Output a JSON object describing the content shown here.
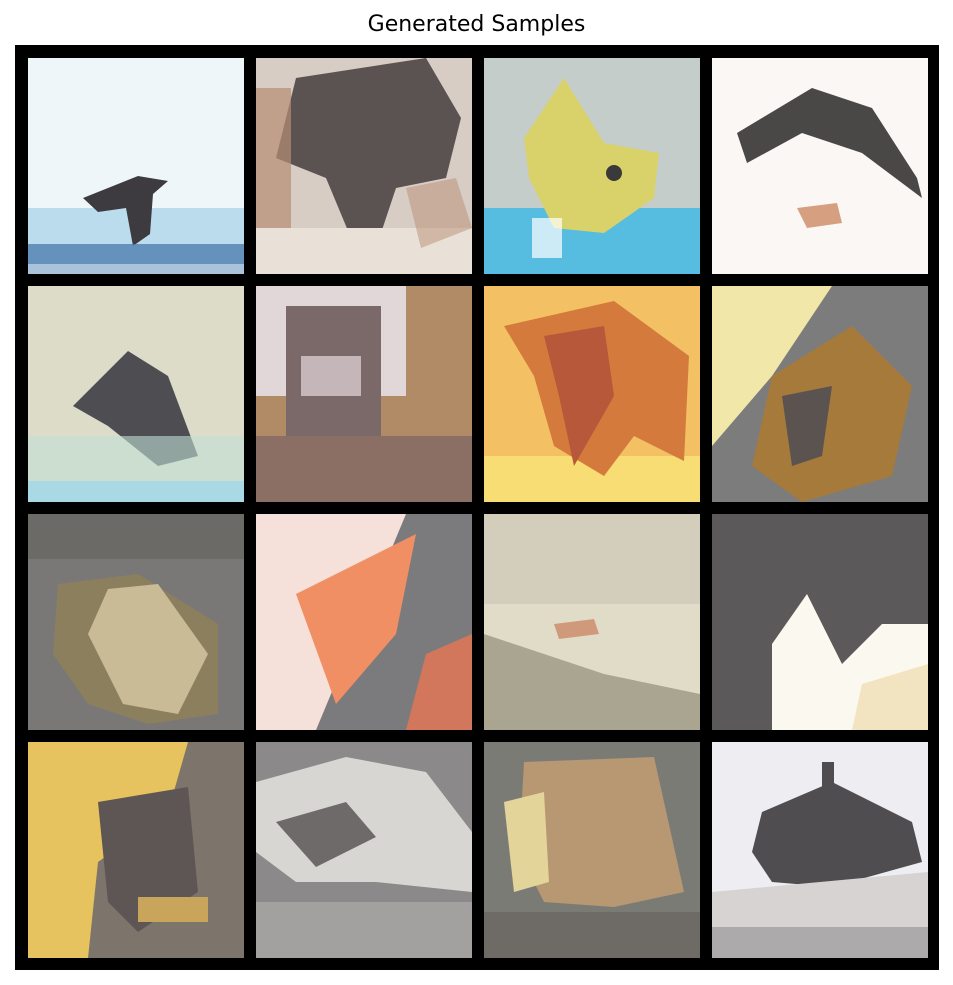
{
  "figure": {
    "title": "Generated Samples",
    "frame_color": "#000000"
  },
  "samples": [
    {
      "row": 1,
      "col": 1,
      "colors": {
        "bg": "#eef6fa",
        "main": "#3d3b3f",
        "accent": "#8fc6e2",
        "base": "#4f7fb0"
      }
    },
    {
      "row": 1,
      "col": 2,
      "colors": {
        "bg": "#d8cdc4",
        "main": "#5b5352",
        "accent": "#b78d74",
        "base": "#e9e1d8"
      }
    },
    {
      "row": 1,
      "col": 3,
      "colors": {
        "bg": "#c4cdc9",
        "main": "#d9d26a",
        "accent": "#6fc3e4",
        "base": "#57bde0"
      }
    },
    {
      "row": 1,
      "col": 4,
      "colors": {
        "bg": "#fbf7f4",
        "main": "#4a4846",
        "accent": "#c4794f",
        "base": "#f5f0ec"
      }
    },
    {
      "row": 2,
      "col": 1,
      "colors": {
        "bg": "#dcdcc9",
        "main": "#4d4d52",
        "accent": "#bfe0d6",
        "base": "#a9d9e4"
      }
    },
    {
      "row": 2,
      "col": 2,
      "colors": {
        "bg": "#b08b66",
        "main": "#7a6968",
        "accent": "#e7dfe6",
        "base": "#8b6f65"
      }
    },
    {
      "row": 2,
      "col": 3,
      "colors": {
        "bg": "#f3c063",
        "main": "#b8583a",
        "accent": "#d47a3c",
        "base": "#f8dd74"
      }
    },
    {
      "row": 2,
      "col": 4,
      "colors": {
        "bg": "#7c7c7d",
        "main": "#a57a3b",
        "accent": "#f1e7a8",
        "base": "#5b5350"
      }
    },
    {
      "row": 3,
      "col": 1,
      "colors": {
        "bg": "#7a7876",
        "main": "#c8bb95",
        "accent": "#8c7f5e",
        "base": "#6b6a67"
      }
    },
    {
      "row": 3,
      "col": 2,
      "colors": {
        "bg": "#7b7b7d",
        "main": "#f18f64",
        "accent": "#f6e1da",
        "base": "#d2775c"
      }
    },
    {
      "row": 3,
      "col": 3,
      "colors": {
        "bg": "#e1dcc8",
        "main": "#a49e8a",
        "accent": "#c46c4a",
        "base": "#cfcab8"
      }
    },
    {
      "row": 3,
      "col": 4,
      "colors": {
        "bg": "#fbf8ef",
        "main": "#5b5959",
        "accent": "#8a8886",
        "base": "#f2e4c0"
      }
    },
    {
      "row": 4,
      "col": 1,
      "colors": {
        "bg": "#7d756b",
        "main": "#e6c35e",
        "accent": "#5d5654",
        "base": "#c8a55a"
      }
    },
    {
      "row": 4,
      "col": 2,
      "colors": {
        "bg": "#8b8989",
        "main": "#d8d6d3",
        "accent": "#6d6a69",
        "base": "#a3a1a0"
      }
    },
    {
      "row": 4,
      "col": 3,
      "colors": {
        "bg": "#7b7b76",
        "main": "#b89773",
        "accent": "#e3d49a",
        "base": "#6e6b66"
      }
    },
    {
      "row": 4,
      "col": 4,
      "colors": {
        "bg": "#eeeef2",
        "main": "#4f4d4f",
        "accent": "#d6d3d2",
        "base": "#8b8989"
      }
    }
  ]
}
